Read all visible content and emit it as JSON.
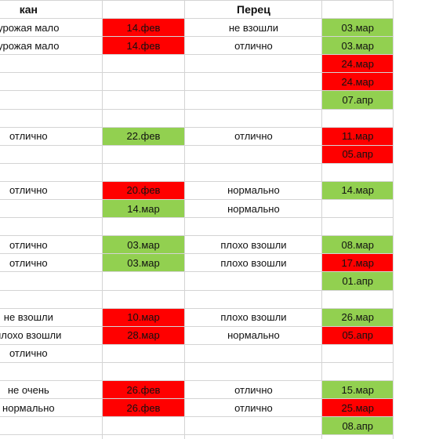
{
  "sheet": {
    "header": {
      "col_a": "кан",
      "col_c": "Перец"
    },
    "colors": {
      "red": "#ff0000",
      "green": "#92d050",
      "grid": "#d4d4d4"
    },
    "rows": [
      {
        "a": "урожая мало",
        "b": "14.фев",
        "b_color": "red",
        "c": "не взошли",
        "d": "03.мар",
        "d_color": "green"
      },
      {
        "a": "урожая мало",
        "b": "14.фев",
        "b_color": "red",
        "c": "отлично",
        "d": "03.мар",
        "d_color": "green"
      },
      {
        "a": "",
        "b": "",
        "b_color": "",
        "c": "",
        "d": "24.мар",
        "d_color": "red"
      },
      {
        "a": "",
        "b": "",
        "b_color": "",
        "c": "",
        "d": "24.мар",
        "d_color": "red"
      },
      {
        "a": "",
        "b": "",
        "b_color": "",
        "c": "",
        "d": "07.апр",
        "d_color": "green"
      },
      {
        "a": "",
        "b": "",
        "b_color": "",
        "c": "",
        "d": "",
        "d_color": ""
      },
      {
        "a": "отлично",
        "b": "22.фев",
        "b_color": "green",
        "c": "отлично",
        "d": "11.мар",
        "d_color": "red"
      },
      {
        "a": "",
        "b": "",
        "b_color": "",
        "c": "",
        "d": "05.апр",
        "d_color": "red"
      },
      {
        "a": "",
        "b": "",
        "b_color": "",
        "c": "",
        "d": "",
        "d_color": ""
      },
      {
        "a": "отлично",
        "b": "20.фев",
        "b_color": "red",
        "c": "нормально",
        "d": "14.мар",
        "d_color": "green"
      },
      {
        "a": "",
        "b": "14.мар",
        "b_color": "green",
        "c": "нормально",
        "d": "",
        "d_color": ""
      },
      {
        "a": "",
        "b": "",
        "b_color": "",
        "c": "",
        "d": "",
        "d_color": ""
      },
      {
        "a": "отлично",
        "b": "03.мар",
        "b_color": "green",
        "c": "плохо взошли",
        "d": "08.мар",
        "d_color": "green"
      },
      {
        "a": "отлично",
        "b": "03.мар",
        "b_color": "green",
        "c": "плохо взошли",
        "d": "17.мар",
        "d_color": "red"
      },
      {
        "a": "",
        "b": "",
        "b_color": "",
        "c": "",
        "d": "01.апр",
        "d_color": "green"
      },
      {
        "a": "",
        "b": "",
        "b_color": "",
        "c": "",
        "d": "",
        "d_color": ""
      },
      {
        "a": "не взошли",
        "b": "10.мар",
        "b_color": "red",
        "c": "плохо взошли",
        "d": "26.мар",
        "d_color": "green"
      },
      {
        "a": "плохо взошли",
        "b": "28.мар",
        "b_color": "red",
        "c": "нормально",
        "d": "05.апр",
        "d_color": "red"
      },
      {
        "a": "отлично",
        "b": "",
        "b_color": "",
        "c": "",
        "d": "",
        "d_color": ""
      },
      {
        "a": "",
        "b": "",
        "b_color": "",
        "c": "",
        "d": "",
        "d_color": ""
      },
      {
        "a": "не очень",
        "b": "26.фев",
        "b_color": "red",
        "c": "отлично",
        "d": "15.мар",
        "d_color": "green"
      },
      {
        "a": "нормально",
        "b": "26.фев",
        "b_color": "red",
        "c": "отлично",
        "d": "25.мар",
        "d_color": "red"
      },
      {
        "a": "",
        "b": "",
        "b_color": "",
        "c": "",
        "d": "08.апр",
        "d_color": "green"
      },
      {
        "a": "",
        "b": "",
        "b_color": "",
        "c": "",
        "d": "",
        "d_color": ""
      }
    ]
  }
}
